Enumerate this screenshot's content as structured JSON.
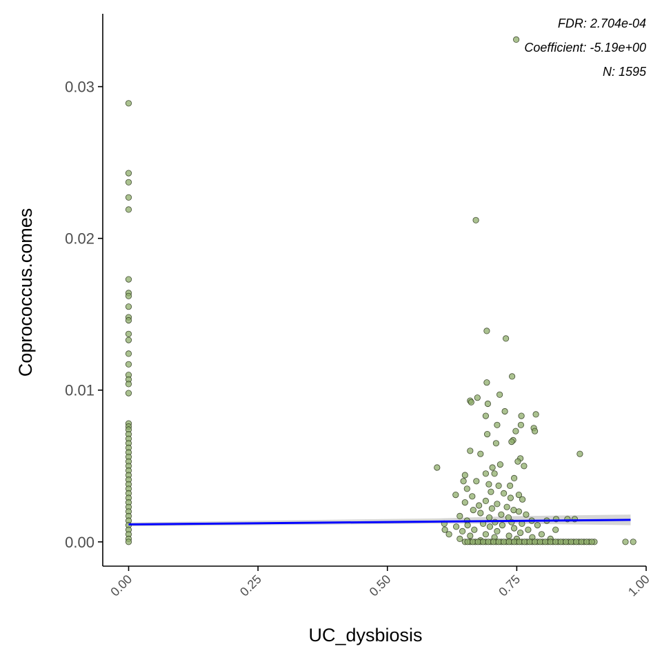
{
  "chart_data": {
    "type": "scatter",
    "xlabel": "UC_dysbiosis",
    "ylabel": "Coprococcus.comes",
    "xlim": [
      -0.05,
      1.0
    ],
    "ylim": [
      -0.0016,
      0.0348
    ],
    "x_ticks": [
      0.0,
      0.25,
      0.5,
      0.75,
      1.0
    ],
    "x_tick_labels": [
      "0.00",
      "0.25",
      "0.50",
      "0.75",
      "1.00"
    ],
    "y_ticks": [
      0.0,
      0.01,
      0.02,
      0.03
    ],
    "y_tick_labels": [
      "0.00",
      "0.01",
      "0.02",
      "0.03"
    ],
    "grid": false,
    "annotations": [
      "FDR: 2.704e-04",
      "Coefficient: -5.19e+00",
      "N: 1595"
    ],
    "colors": {
      "points_fill": "#8fad6b",
      "points_stroke": "#2f3a1f",
      "fit_line": "#0000ff",
      "confidence_band": "#bebebe",
      "axis": "#000000"
    },
    "fit_line": {
      "x": [
        0.0,
        0.97
      ],
      "y": [
        0.00115,
        0.00145
      ]
    },
    "confidence_band": {
      "x": [
        0.0,
        0.6,
        0.75,
        0.97
      ],
      "upper": [
        0.00128,
        0.00155,
        0.0017,
        0.0018
      ],
      "lower": [
        0.00102,
        0.0012,
        0.0012,
        0.0011
      ]
    },
    "points": [
      {
        "x": 0.0,
        "y": 0.0289
      },
      {
        "x": 0.0,
        "y": 0.0243
      },
      {
        "x": 0.0,
        "y": 0.0237
      },
      {
        "x": 0.0,
        "y": 0.0227
      },
      {
        "x": 0.0,
        "y": 0.0219
      },
      {
        "x": 0.0,
        "y": 0.0173
      },
      {
        "x": 0.0,
        "y": 0.0164
      },
      {
        "x": 0.0,
        "y": 0.0162
      },
      {
        "x": 0.0,
        "y": 0.0155
      },
      {
        "x": 0.0,
        "y": 0.0148
      },
      {
        "x": 0.0,
        "y": 0.0146
      },
      {
        "x": 0.0,
        "y": 0.0137
      },
      {
        "x": 0.0,
        "y": 0.0133
      },
      {
        "x": 0.0,
        "y": 0.0124
      },
      {
        "x": 0.0,
        "y": 0.0117
      },
      {
        "x": 0.0,
        "y": 0.011
      },
      {
        "x": 0.0,
        "y": 0.0107
      },
      {
        "x": 0.0,
        "y": 0.0104
      },
      {
        "x": 0.0,
        "y": 0.0098
      },
      {
        "x": 0.0,
        "y": 0.0078
      },
      {
        "x": 0.0,
        "y": 0.0076
      },
      {
        "x": 0.0,
        "y": 0.0074
      },
      {
        "x": 0.0,
        "y": 0.0071
      },
      {
        "x": 0.0,
        "y": 0.0068
      },
      {
        "x": 0.0,
        "y": 0.0065
      },
      {
        "x": 0.0,
        "y": 0.0062
      },
      {
        "x": 0.0,
        "y": 0.0059
      },
      {
        "x": 0.0,
        "y": 0.0056
      },
      {
        "x": 0.0,
        "y": 0.0053
      },
      {
        "x": 0.0,
        "y": 0.005
      },
      {
        "x": 0.0,
        "y": 0.0047
      },
      {
        "x": 0.0,
        "y": 0.0044
      },
      {
        "x": 0.0,
        "y": 0.0041
      },
      {
        "x": 0.0,
        "y": 0.0038
      },
      {
        "x": 0.0,
        "y": 0.0035
      },
      {
        "x": 0.0,
        "y": 0.0032
      },
      {
        "x": 0.0,
        "y": 0.0029
      },
      {
        "x": 0.0,
        "y": 0.0026
      },
      {
        "x": 0.0,
        "y": 0.0023
      },
      {
        "x": 0.0,
        "y": 0.002
      },
      {
        "x": 0.0,
        "y": 0.0017
      },
      {
        "x": 0.0,
        "y": 0.0014
      },
      {
        "x": 0.0,
        "y": 0.0011
      },
      {
        "x": 0.0,
        "y": 0.0008
      },
      {
        "x": 0.0,
        "y": 0.0005
      },
      {
        "x": 0.0,
        "y": 0.0002
      },
      {
        "x": 0.0,
        "y": 0.0
      },
      {
        "x": 0.749,
        "y": 0.0331
      },
      {
        "x": 0.671,
        "y": 0.0212
      },
      {
        "x": 0.692,
        "y": 0.0139
      },
      {
        "x": 0.729,
        "y": 0.0134
      },
      {
        "x": 0.741,
        "y": 0.0109
      },
      {
        "x": 0.692,
        "y": 0.0105
      },
      {
        "x": 0.717,
        "y": 0.0097
      },
      {
        "x": 0.674,
        "y": 0.0095
      },
      {
        "x": 0.66,
        "y": 0.0093
      },
      {
        "x": 0.662,
        "y": 0.0092
      },
      {
        "x": 0.694,
        "y": 0.0091
      },
      {
        "x": 0.787,
        "y": 0.0084
      },
      {
        "x": 0.759,
        "y": 0.0083
      },
      {
        "x": 0.727,
        "y": 0.0086
      },
      {
        "x": 0.69,
        "y": 0.0083
      },
      {
        "x": 0.783,
        "y": 0.0075
      },
      {
        "x": 0.748,
        "y": 0.0073
      },
      {
        "x": 0.785,
        "y": 0.0073
      },
      {
        "x": 0.758,
        "y": 0.0077
      },
      {
        "x": 0.712,
        "y": 0.0077
      },
      {
        "x": 0.693,
        "y": 0.0071
      },
      {
        "x": 0.743,
        "y": 0.0067
      },
      {
        "x": 0.74,
        "y": 0.0066
      },
      {
        "x": 0.71,
        "y": 0.0065
      },
      {
        "x": 0.872,
        "y": 0.0058
      },
      {
        "x": 0.66,
        "y": 0.006
      },
      {
        "x": 0.68,
        "y": 0.0058
      },
      {
        "x": 0.757,
        "y": 0.0055
      },
      {
        "x": 0.752,
        "y": 0.0053
      },
      {
        "x": 0.718,
        "y": 0.0051
      },
      {
        "x": 0.764,
        "y": 0.005
      },
      {
        "x": 0.596,
        "y": 0.0049
      },
      {
        "x": 0.703,
        "y": 0.0049
      },
      {
        "x": 0.69,
        "y": 0.0045
      },
      {
        "x": 0.65,
        "y": 0.0044
      },
      {
        "x": 0.707,
        "y": 0.0045
      },
      {
        "x": 0.745,
        "y": 0.0042
      },
      {
        "x": 0.647,
        "y": 0.004
      },
      {
        "x": 0.672,
        "y": 0.004
      },
      {
        "x": 0.696,
        "y": 0.0038
      },
      {
        "x": 0.715,
        "y": 0.0037
      },
      {
        "x": 0.737,
        "y": 0.0037
      },
      {
        "x": 0.654,
        "y": 0.0035
      },
      {
        "x": 0.7,
        "y": 0.0033
      },
      {
        "x": 0.725,
        "y": 0.0032
      },
      {
        "x": 0.632,
        "y": 0.0031
      },
      {
        "x": 0.664,
        "y": 0.003
      },
      {
        "x": 0.754,
        "y": 0.0031
      },
      {
        "x": 0.738,
        "y": 0.0029
      },
      {
        "x": 0.761,
        "y": 0.0028
      },
      {
        "x": 0.69,
        "y": 0.0027
      },
      {
        "x": 0.65,
        "y": 0.0026
      },
      {
        "x": 0.712,
        "y": 0.0025
      },
      {
        "x": 0.677,
        "y": 0.0024
      },
      {
        "x": 0.731,
        "y": 0.0023
      },
      {
        "x": 0.702,
        "y": 0.0022
      },
      {
        "x": 0.666,
        "y": 0.0021
      },
      {
        "x": 0.744,
        "y": 0.0021
      },
      {
        "x": 0.754,
        "y": 0.002
      },
      {
        "x": 0.68,
        "y": 0.0019
      },
      {
        "x": 0.72,
        "y": 0.0018
      },
      {
        "x": 0.768,
        "y": 0.0018
      },
      {
        "x": 0.64,
        "y": 0.0017
      },
      {
        "x": 0.697,
        "y": 0.0016
      },
      {
        "x": 0.734,
        "y": 0.0016
      },
      {
        "x": 0.848,
        "y": 0.0015
      },
      {
        "x": 0.862,
        "y": 0.0015
      },
      {
        "x": 0.826,
        "y": 0.0015
      },
      {
        "x": 0.808,
        "y": 0.0014
      },
      {
        "x": 0.779,
        "y": 0.0014
      },
      {
        "x": 0.654,
        "y": 0.0014
      },
      {
        "x": 0.708,
        "y": 0.0013
      },
      {
        "x": 0.74,
        "y": 0.0013
      },
      {
        "x": 0.61,
        "y": 0.0012
      },
      {
        "x": 0.685,
        "y": 0.0012
      },
      {
        "x": 0.76,
        "y": 0.0012
      },
      {
        "x": 0.79,
        "y": 0.0011
      },
      {
        "x": 0.655,
        "y": 0.0011
      },
      {
        "x": 0.722,
        "y": 0.0011
      },
      {
        "x": 0.633,
        "y": 0.001
      },
      {
        "x": 0.698,
        "y": 0.001
      },
      {
        "x": 0.745,
        "y": 0.0009
      },
      {
        "x": 0.611,
        "y": 0.0008
      },
      {
        "x": 0.668,
        "y": 0.0008
      },
      {
        "x": 0.772,
        "y": 0.0008
      },
      {
        "x": 0.825,
        "y": 0.0008
      },
      {
        "x": 0.645,
        "y": 0.0007
      },
      {
        "x": 0.712,
        "y": 0.0007
      },
      {
        "x": 0.757,
        "y": 0.0006
      },
      {
        "x": 0.619,
        "y": 0.0005
      },
      {
        "x": 0.69,
        "y": 0.0005
      },
      {
        "x": 0.798,
        "y": 0.0005
      },
      {
        "x": 0.735,
        "y": 0.0004
      },
      {
        "x": 0.66,
        "y": 0.0004
      },
      {
        "x": 0.78,
        "y": 0.0003
      },
      {
        "x": 0.707,
        "y": 0.0003
      },
      {
        "x": 0.64,
        "y": 0.0002
      },
      {
        "x": 0.75,
        "y": 0.0002
      },
      {
        "x": 0.815,
        "y": 0.0002
      },
      {
        "x": 0.68,
        "y": 0.0001
      },
      {
        "x": 0.65,
        "y": 0.0
      },
      {
        "x": 0.66,
        "y": 0.0
      },
      {
        "x": 0.67,
        "y": 0.0
      },
      {
        "x": 0.68,
        "y": 0.0
      },
      {
        "x": 0.69,
        "y": 0.0
      },
      {
        "x": 0.7,
        "y": 0.0
      },
      {
        "x": 0.71,
        "y": 0.0
      },
      {
        "x": 0.72,
        "y": 0.0
      },
      {
        "x": 0.73,
        "y": 0.0
      },
      {
        "x": 0.74,
        "y": 0.0
      },
      {
        "x": 0.75,
        "y": 0.0
      },
      {
        "x": 0.76,
        "y": 0.0
      },
      {
        "x": 0.77,
        "y": 0.0
      },
      {
        "x": 0.78,
        "y": 0.0
      },
      {
        "x": 0.79,
        "y": 0.0
      },
      {
        "x": 0.8,
        "y": 0.0
      },
      {
        "x": 0.81,
        "y": 0.0
      },
      {
        "x": 0.82,
        "y": 0.0
      },
      {
        "x": 0.83,
        "y": 0.0
      },
      {
        "x": 0.84,
        "y": 0.0
      },
      {
        "x": 0.85,
        "y": 0.0
      },
      {
        "x": 0.86,
        "y": 0.0
      },
      {
        "x": 0.87,
        "y": 0.0
      },
      {
        "x": 0.88,
        "y": 0.0
      },
      {
        "x": 0.89,
        "y": 0.0
      },
      {
        "x": 0.9,
        "y": 0.0
      },
      {
        "x": 0.96,
        "y": 0.0
      },
      {
        "x": 0.975,
        "y": 0.0
      },
      {
        "x": 0.655,
        "y": 0.0
      },
      {
        "x": 0.665,
        "y": 0.0
      },
      {
        "x": 0.675,
        "y": 0.0
      },
      {
        "x": 0.685,
        "y": 0.0
      },
      {
        "x": 0.695,
        "y": 0.0
      },
      {
        "x": 0.705,
        "y": 0.0
      },
      {
        "x": 0.715,
        "y": 0.0
      },
      {
        "x": 0.725,
        "y": 0.0
      },
      {
        "x": 0.735,
        "y": 0.0
      },
      {
        "x": 0.745,
        "y": 0.0
      },
      {
        "x": 0.755,
        "y": 0.0
      },
      {
        "x": 0.765,
        "y": 0.0
      },
      {
        "x": 0.775,
        "y": 0.0
      },
      {
        "x": 0.785,
        "y": 0.0
      },
      {
        "x": 0.795,
        "y": 0.0
      },
      {
        "x": 0.805,
        "y": 0.0
      },
      {
        "x": 0.815,
        "y": 0.0
      },
      {
        "x": 0.825,
        "y": 0.0
      },
      {
        "x": 0.835,
        "y": 0.0
      },
      {
        "x": 0.845,
        "y": 0.0
      },
      {
        "x": 0.855,
        "y": 0.0
      },
      {
        "x": 0.865,
        "y": 0.0
      },
      {
        "x": 0.875,
        "y": 0.0
      },
      {
        "x": 0.885,
        "y": 0.0
      },
      {
        "x": 0.895,
        "y": 0.0
      }
    ]
  }
}
